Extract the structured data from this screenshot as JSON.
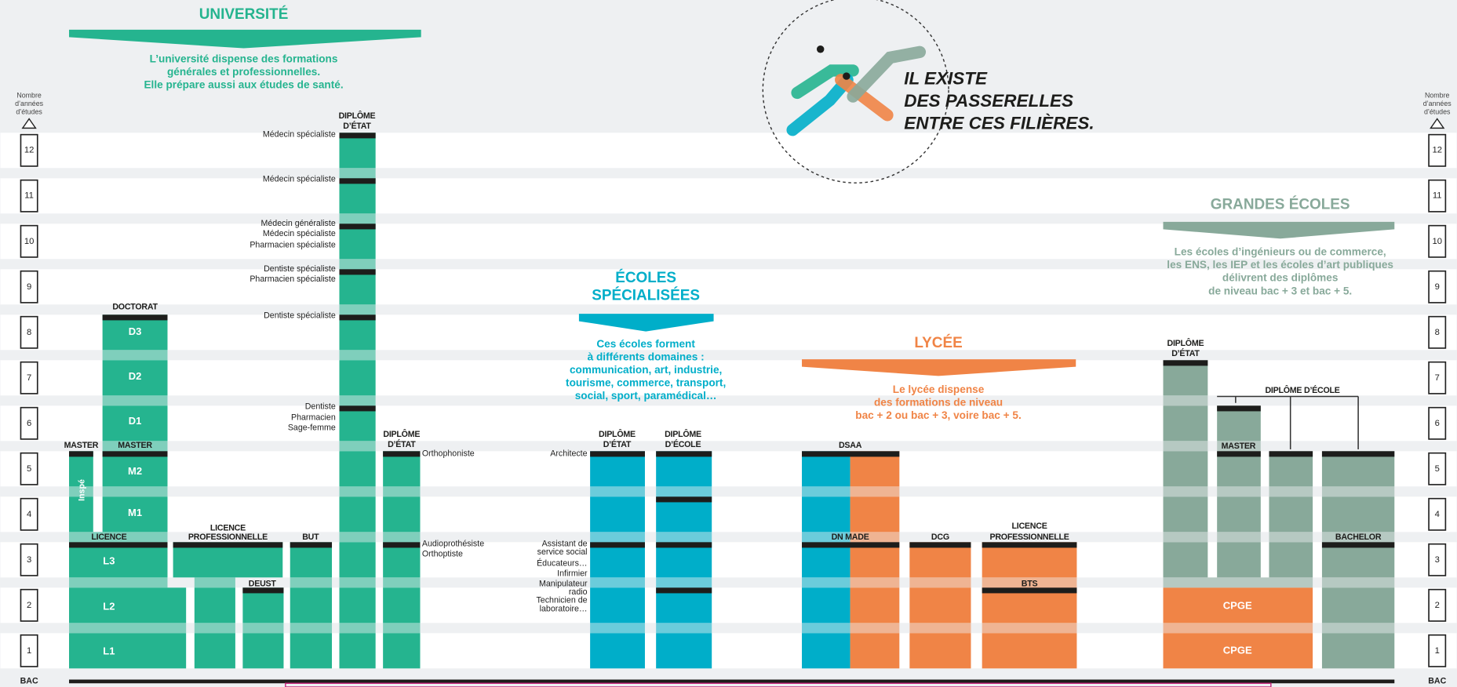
{
  "axis": {
    "title": [
      "Nombre",
      "d’années",
      "d’études"
    ],
    "levels": [
      "1",
      "2",
      "3",
      "4",
      "5",
      "6",
      "7",
      "8",
      "9",
      "10",
      "11",
      "12"
    ],
    "base": "BAC"
  },
  "callout": [
    "IL EXISTE",
    "DES PASSERELLES",
    "ENTRE CES FILIÈRES."
  ],
  "universite": {
    "title": "UNIVERSITÉ",
    "description": [
      "L’université dispense des formations",
      "générales et professionnelles.",
      "Elle prépare aussi aux études de santé."
    ],
    "doctorat": "DOCTORAT",
    "master": "MASTER",
    "inspe": "Inspé",
    "years": [
      "D3",
      "D2",
      "D1",
      "M2",
      "M1",
      "L3",
      "L2",
      "L1"
    ],
    "licence": "LICENCE",
    "licence_pro": [
      "LICENCE",
      "PROFESSIONNELLE"
    ],
    "but": "BUT",
    "deust": "DEUST",
    "sante": {
      "header": [
        "DIPLÔME",
        "D’ÉTAT"
      ],
      "labels": [
        "Médecin spécialiste",
        "Médecin spécialiste",
        "Médecin généraliste",
        "Médecin spécialiste",
        "Pharmacien spécialiste",
        "Dentiste spécialiste",
        "Pharmacien spécialiste",
        "Dentiste spécialiste",
        "Dentiste",
        "Pharmacien",
        "Sage-femme"
      ]
    },
    "paramedical": {
      "header": [
        "DIPLÔME",
        "D’ÉTAT"
      ],
      "labels": [
        "Orthophoniste",
        "Audioprothésiste",
        "Orthoptiste"
      ]
    }
  },
  "ecoles_specialisees": {
    "title": [
      "ÉCOLES",
      "SPÉCIALISÉES"
    ],
    "description": [
      "Ces écoles forment",
      "à différents domaines :",
      "communication, art, industrie,",
      "tourisme, commerce, transport,",
      "social, sport, paramédical…"
    ],
    "diplome_etat": [
      "DIPLÔME",
      "D’ÉTAT"
    ],
    "diplome_ecole": [
      "DIPLÔME",
      "D’ÉCOLE"
    ],
    "labels": [
      "Architecte",
      "Assistant de",
      "service social",
      "Éducateurs…",
      "Infirmier",
      "Manipulateur",
      "radio",
      "Technicien de",
      "laboratoire…"
    ]
  },
  "lycee": {
    "title": "LYCÉE",
    "description": [
      "Le lycée dispense",
      "des formations de niveau",
      "bac + 2 ou bac + 3, voire bac + 5."
    ],
    "dsaa": "DSAA",
    "dn_made": "DN MADE",
    "dcg": "DCG",
    "licence_pro": [
      "LICENCE",
      "PROFESSIONNELLE"
    ],
    "bts": "BTS"
  },
  "grandes_ecoles": {
    "title": "GRANDES ÉCOLES",
    "description": [
      "Les écoles d’ingénieurs ou de commerce,",
      "les ENS, les IEP et les écoles d’art publiques",
      "délivrent des diplômes",
      "de niveau bac + 3 et bac + 5."
    ],
    "diplome_etat": [
      "DIPLÔME",
      "D’ÉTAT"
    ],
    "diplome_ecole": "DIPLÔME D’ÉCOLE",
    "master": "MASTER",
    "bachelor": "BACHELOR",
    "cpge": "CPGE"
  }
}
